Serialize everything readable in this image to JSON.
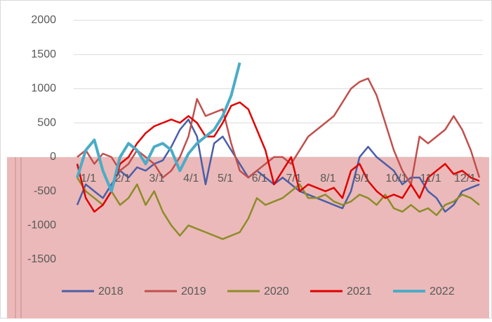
{
  "chart_data": {
    "type": "line",
    "categories": [
      "1/1",
      null,
      null,
      null,
      "2/1",
      null,
      null,
      null,
      "3/1",
      null,
      null,
      null,
      "4/1",
      null,
      null,
      null,
      "5/1",
      null,
      null,
      null,
      "6/1",
      null,
      null,
      null,
      "7/1",
      null,
      null,
      null,
      "8/1",
      null,
      null,
      null,
      "9/1",
      null,
      null,
      null,
      "10/1",
      null,
      null,
      null,
      "11/1",
      null,
      null,
      null,
      "12/1",
      null,
      null,
      null
    ],
    "series": [
      {
        "name": "2018",
        "color": "#4a5ea8",
        "values": [
          -700,
          -400,
          -500,
          -600,
          -400,
          -200,
          -300,
          -150,
          -200,
          -100,
          -50,
          150,
          400,
          550,
          300,
          -400,
          200,
          300,
          100,
          -100,
          -300,
          -200,
          -300,
          -400,
          -300,
          -400,
          -500,
          -550,
          -600,
          -650,
          -700,
          -750,
          -500,
          0,
          150,
          0,
          -100,
          -200,
          -400,
          -300,
          -300,
          -500,
          -600,
          -800,
          -700,
          -500,
          -450,
          -400
        ]
      },
      {
        "name": "2019",
        "color": "#c0504d",
        "values": [
          0,
          100,
          -100,
          50,
          0,
          -200,
          -100,
          100,
          0,
          -100,
          -300,
          -200,
          0,
          300,
          850,
          600,
          650,
          700,
          200,
          -200,
          -300,
          -200,
          -100,
          0,
          0,
          -100,
          100,
          300,
          400,
          500,
          600,
          800,
          1000,
          1100,
          1150,
          900,
          500,
          100,
          -200,
          -400,
          300,
          200,
          300,
          400,
          600,
          400,
          100,
          -300
        ]
      },
      {
        "name": "2020",
        "color": "#8c8c2a",
        "values": [
          -300,
          -500,
          -600,
          -700,
          -500,
          -700,
          -600,
          -400,
          -700,
          -500,
          -800,
          -1000,
          -1150,
          -1000,
          -1050,
          -1100,
          -1150,
          -1200,
          -1150,
          -1100,
          -900,
          -600,
          -700,
          -650,
          -600,
          -500,
          -400,
          -600,
          -600,
          -550,
          -650,
          -700,
          -650,
          -550,
          -600,
          -700,
          -550,
          -750,
          -800,
          -700,
          -800,
          -750,
          -850,
          -700,
          -650,
          -550,
          -600,
          -700
        ]
      },
      {
        "name": "2021",
        "color": "#e00000",
        "values": [
          -100,
          -600,
          -800,
          -700,
          -500,
          -100,
          0,
          200,
          350,
          450,
          500,
          550,
          500,
          600,
          500,
          300,
          300,
          500,
          750,
          800,
          700,
          400,
          100,
          -400,
          -200,
          0,
          -500,
          -400,
          -450,
          -500,
          -450,
          -600,
          -200,
          -100,
          -350,
          -500,
          -600,
          -550,
          -600,
          -400,
          -600,
          -300,
          -200,
          -100,
          -250,
          -200,
          -300,
          -350
        ]
      },
      {
        "name": "2022",
        "color": "#4bacc6",
        "width": 4,
        "values": [
          -300,
          100,
          250,
          -200,
          -500,
          0,
          200,
          100,
          -100,
          150,
          200,
          100,
          -200,
          50,
          200,
          300,
          400,
          600,
          900,
          1380,
          null,
          null,
          null,
          null,
          null,
          null,
          null,
          null,
          null,
          null,
          null,
          null,
          null,
          null,
          null,
          null,
          null,
          null,
          null,
          null,
          null,
          null,
          null,
          null,
          null,
          null,
          null,
          null
        ]
      }
    ],
    "ylim": [
      -1500,
      2000
    ],
    "yticks": [
      -1500,
      -1000,
      -500,
      0,
      500,
      1000,
      1500,
      2000
    ],
    "grid": true
  }
}
